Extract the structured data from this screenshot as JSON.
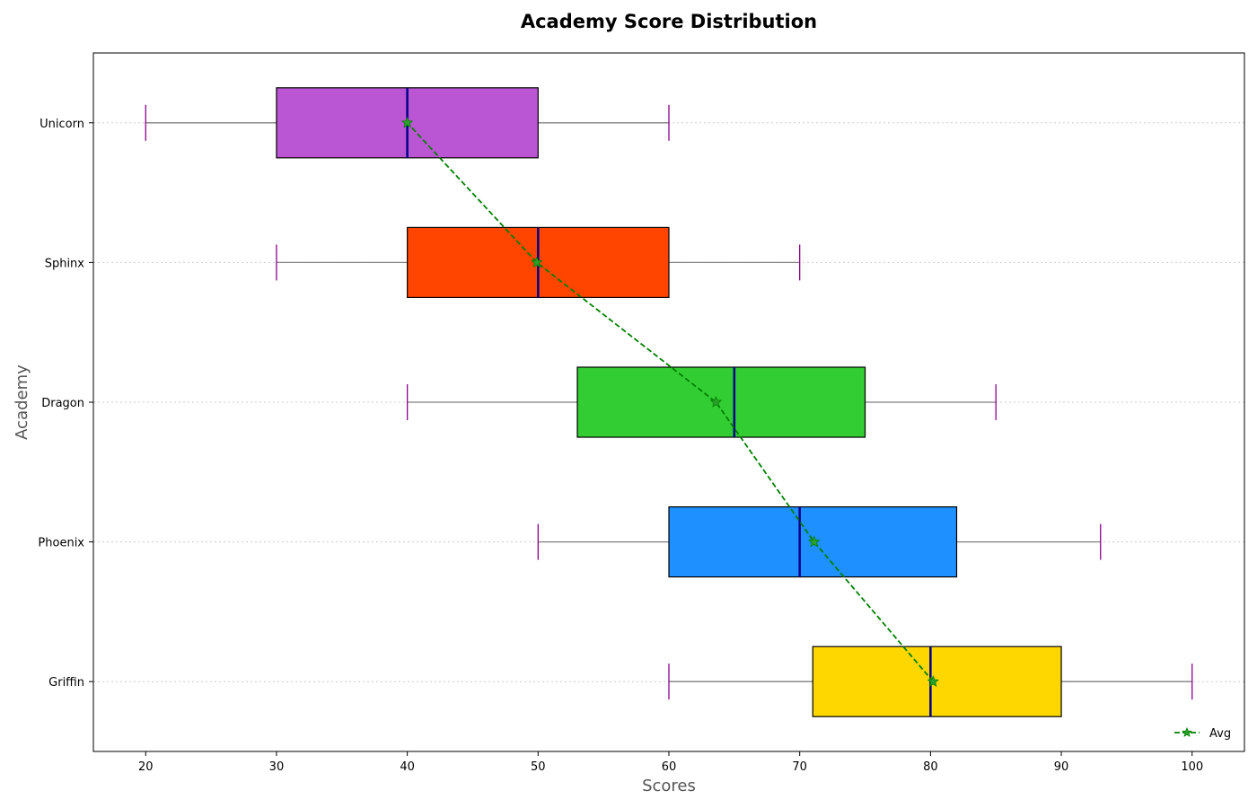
{
  "chart_data": {
    "type": "boxplot",
    "title": "Academy Score Distribution",
    "xlabel": "Scores",
    "ylabel": "Academy",
    "xlim": [
      16,
      104
    ],
    "xticks": [
      20,
      30,
      40,
      50,
      60,
      70,
      80,
      90,
      100
    ],
    "categories": [
      "Griffin",
      "Phoenix",
      "Dragon",
      "Sphinx",
      "Unicorn"
    ],
    "boxes": [
      {
        "name": "Griffin",
        "min": 60,
        "q1": 71,
        "median": 80,
        "q3": 90,
        "max": 100,
        "color": "#ffd700"
      },
      {
        "name": "Phoenix",
        "min": 50,
        "q1": 60,
        "median": 70,
        "q3": 82,
        "max": 93,
        "color": "#1e90ff"
      },
      {
        "name": "Dragon",
        "min": 40,
        "q1": 53,
        "median": 65,
        "q3": 75,
        "max": 85,
        "color": "#32cd32"
      },
      {
        "name": "Sphinx",
        "min": 30,
        "q1": 40,
        "median": 50,
        "q3": 60,
        "max": 70,
        "color": "#ff4500"
      },
      {
        "name": "Unicorn",
        "min": 20,
        "q1": 30,
        "median": 40,
        "q3": 50,
        "max": 60,
        "color": "#ba55d3"
      }
    ],
    "avg_series": {
      "name": "Avg",
      "values": [
        80.2,
        71.1,
        63.6,
        49.9,
        40.0
      ],
      "color": "#008000",
      "style": "dashed",
      "marker": "star"
    },
    "median_color": "#00008b",
    "whisker_color": "#808080",
    "cap_color": "#8b008b",
    "grid": "horizontal-dotted",
    "legend_position": "bottom-right"
  }
}
